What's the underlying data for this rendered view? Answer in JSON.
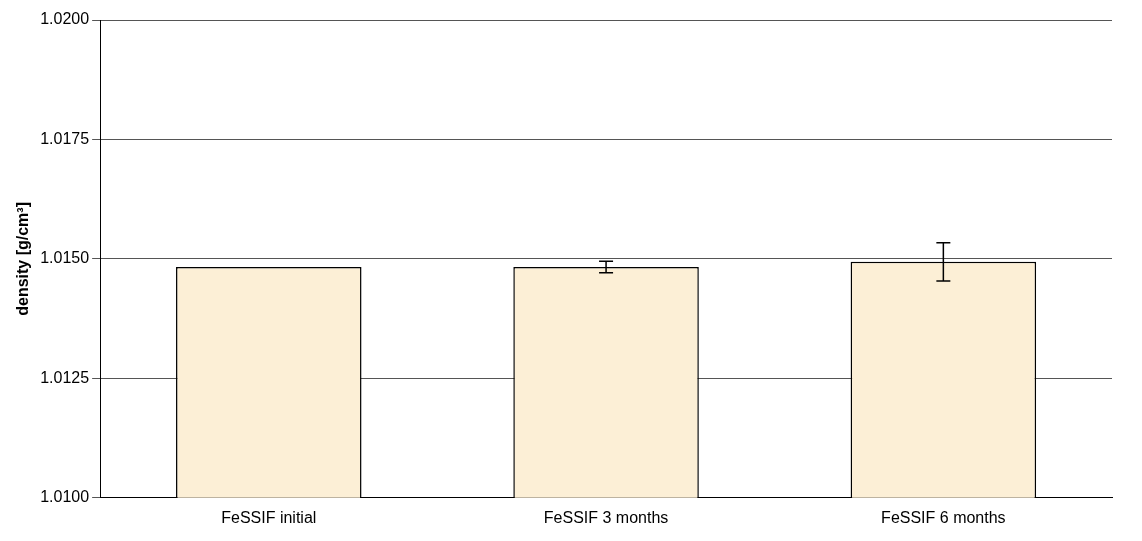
{
  "chart_data": {
    "type": "bar",
    "ylabel": "density [g/cm³]",
    "categories": [
      "FeSSIF initial",
      "FeSSIF 3 months",
      "FeSSIF 6 months"
    ],
    "values": [
      1.01483,
      1.01483,
      1.01494
    ],
    "errors": [
      null,
      0.00012,
      0.0004
    ],
    "color": "#fcefd6",
    "ylim": [
      1.01,
      1.02
    ],
    "yticks": [
      {
        "value": 1.01,
        "label": "1.0100"
      },
      {
        "value": 1.0125,
        "label": "1.0125"
      },
      {
        "value": 1.015,
        "label": "1.0150"
      },
      {
        "value": 1.0175,
        "label": "1.0175"
      },
      {
        "value": 1.02,
        "label": "1.0200"
      }
    ],
    "grid": "y",
    "legend": false
  }
}
